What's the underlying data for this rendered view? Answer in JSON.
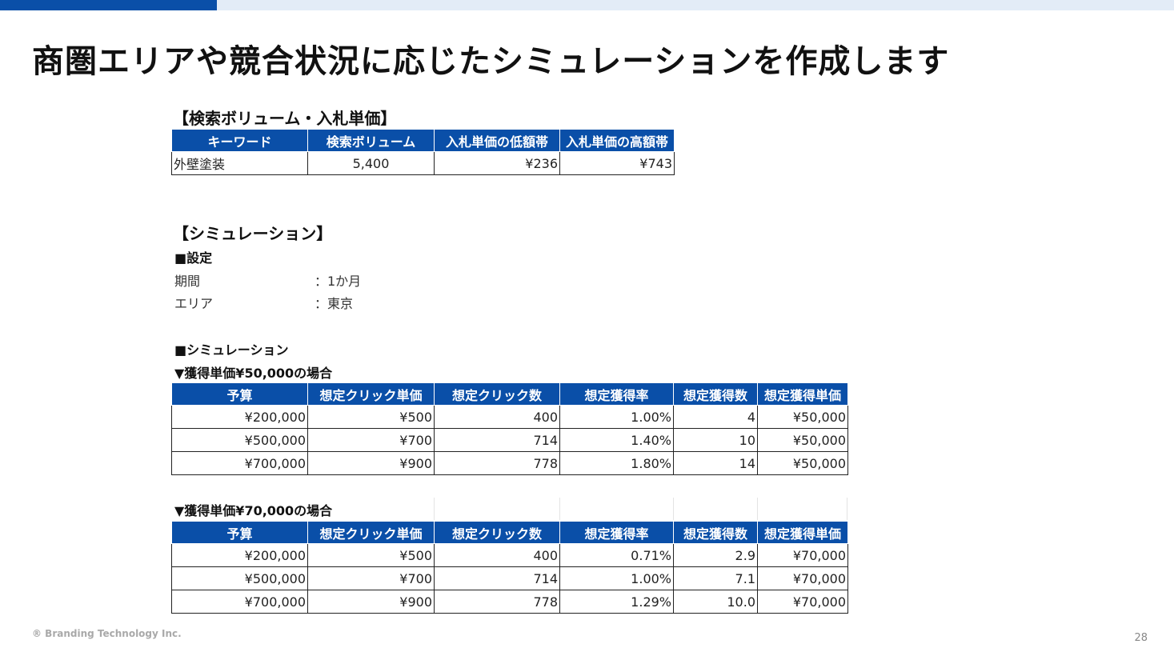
{
  "title": "商圏エリアや競合状況に応じたシミュレーションを作成します",
  "search_section": {
    "heading": "【検索ボリューム・入札単価】",
    "headers": [
      "キーワード",
      "検索ボリューム",
      "入札単価の低額帯",
      "入札単価の高額帯"
    ],
    "row": [
      "外壁塗装",
      "5,400",
      "¥236",
      "¥743"
    ]
  },
  "simulation": {
    "heading": "【シミュレーション】",
    "settings_heading": "■設定",
    "settings": [
      {
        "label": "期間",
        "value": "：1か月"
      },
      {
        "label": "エリア",
        "value": "：東京"
      }
    ],
    "sim_heading": "■シミュレーション",
    "headers": [
      "予算",
      "想定クリック単価",
      "想定クリック数",
      "想定獲得率",
      "想定獲得数",
      "想定獲得単価"
    ],
    "case1": {
      "title": "▼獲得単価¥50,000の場合",
      "rows": [
        [
          "¥200,000",
          "¥500",
          "400",
          "1.00%",
          "4",
          "¥50,000"
        ],
        [
          "¥500,000",
          "¥700",
          "714",
          "1.40%",
          "10",
          "¥50,000"
        ],
        [
          "¥700,000",
          "¥900",
          "778",
          "1.80%",
          "14",
          "¥50,000"
        ]
      ]
    },
    "case2": {
      "title": "▼獲得単価¥70,000の場合",
      "rows": [
        [
          "¥200,000",
          "¥500",
          "400",
          "0.71%",
          "2.9",
          "¥70,000"
        ],
        [
          "¥500,000",
          "¥700",
          "714",
          "1.00%",
          "7.1",
          "¥70,000"
        ],
        [
          "¥700,000",
          "¥900",
          "778",
          "1.29%",
          "10.0",
          "¥70,000"
        ]
      ]
    }
  },
  "footer": {
    "copyright": "® Branding Technology Inc.",
    "page_number": "28"
  },
  "colors": {
    "accent": "#0a4fa8",
    "accent_light": "#e3ecf7"
  }
}
